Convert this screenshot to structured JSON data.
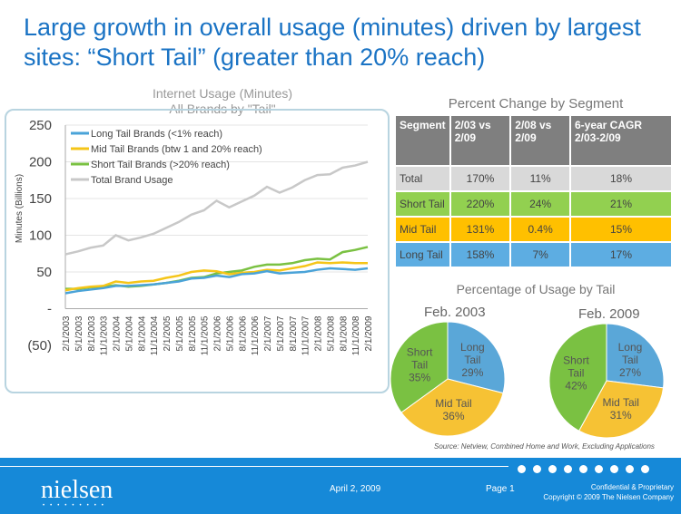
{
  "title": "Large growth in overall usage (minutes) driven by largest sites: “Short Tail” (greater than 20% reach)",
  "chart_data": [
    {
      "type": "line",
      "title": "Internet Usage (Minutes)",
      "subtitle": "All Brands by \"Tail\"",
      "ylabel": "Minutes (Billions)",
      "xlabel": "",
      "ylim": [
        -50,
        250
      ],
      "yticks": [
        250,
        200,
        150,
        100,
        50,
        0,
        -50
      ],
      "ytick_labels": [
        "250",
        "200",
        "150",
        "100",
        "50",
        "-",
        "(50)"
      ],
      "grid": true,
      "legend": "top-left",
      "x_tick_labels": [
        "2/1/2003",
        "5/1/2003",
        "8/1/2003",
        "11/1/2003",
        "2/1/2004",
        "5/1/2004",
        "8/1/2004",
        "11/1/2004",
        "2/1/2005",
        "5/1/2005",
        "8/1/2005",
        "11/1/2005",
        "2/1/2006",
        "5/1/2006",
        "8/1/2006",
        "11/1/2006",
        "2/1/2007",
        "5/1/2007",
        "8/1/2007",
        "11/1/2007",
        "2/1/2008",
        "5/1/2008",
        "8/1/2008",
        "11/1/2008",
        "2/1/2009"
      ],
      "series": [
        {
          "name": "Long Tail Brands (<1% reach)",
          "color": "#4aa3d8",
          "values": [
            21,
            24,
            26,
            28,
            31,
            31,
            32,
            33,
            35,
            37,
            41,
            42,
            45,
            43,
            47,
            48,
            51,
            48,
            49,
            50,
            53,
            55,
            54,
            53,
            55
          ]
        },
        {
          "name": "Mid Tail Brands (btw 1 and 20% reach)",
          "color": "#f5c518",
          "values": [
            25,
            28,
            30,
            31,
            37,
            35,
            37,
            38,
            42,
            45,
            50,
            52,
            51,
            47,
            49,
            50,
            53,
            52,
            55,
            58,
            63,
            62,
            63,
            62,
            62
          ]
        },
        {
          "name": "Short Tail Brands (>20% reach)",
          "color": "#7ac142",
          "values": [
            27,
            27,
            29,
            30,
            32,
            30,
            31,
            33,
            35,
            38,
            42,
            43,
            48,
            50,
            52,
            57,
            60,
            60,
            62,
            66,
            68,
            67,
            77,
            80,
            84
          ]
        },
        {
          "name": "Total Brand Usage",
          "color": "#c8c8c8",
          "values": [
            74,
            78,
            83,
            86,
            100,
            93,
            97,
            102,
            110,
            118,
            128,
            134,
            147,
            138,
            146,
            154,
            166,
            158,
            165,
            175,
            182,
            183,
            192,
            195,
            200
          ]
        }
      ]
    },
    {
      "type": "pie",
      "title": "Feb. 2003",
      "slices": [
        {
          "label": "Long Tail",
          "value": 29,
          "color": "#5aa7d8"
        },
        {
          "label": "Mid Tail",
          "value": 36,
          "color": "#f6c234"
        },
        {
          "label": "Short Tail",
          "value": 35,
          "color": "#7ac142"
        }
      ]
    },
    {
      "type": "pie",
      "title": "Feb. 2009",
      "slices": [
        {
          "label": "Long Tail",
          "value": 27,
          "color": "#5aa7d8"
        },
        {
          "label": "Mid Tail",
          "value": 31,
          "color": "#f6c234"
        },
        {
          "label": "Short Tail",
          "value": 42,
          "color": "#7ac142"
        }
      ]
    }
  ],
  "table": {
    "title": "Percent Change by Segment",
    "headers": [
      "Segment",
      "2/03 vs 2/09",
      "2/08 vs 2/09",
      "6-year CAGR 2/03-2/09"
    ],
    "rows": [
      {
        "cells": [
          "Total",
          "170%",
          "11%",
          "18%"
        ],
        "color": "#d9d9d9"
      },
      {
        "cells": [
          "Short Tail",
          "220%",
          "24%",
          "21%"
        ],
        "color": "#92d050"
      },
      {
        "cells": [
          "Mid Tail",
          "131%",
          "0.4%",
          "15%"
        ],
        "color": "#ffc000"
      },
      {
        "cells": [
          "Long Tail",
          "158%",
          "7%",
          "17%"
        ],
        "color": "#5dade2"
      }
    ]
  },
  "pie_section_title": "Percentage of Usage by Tail",
  "source": "Source: Netview, Combined Home and Work, Excluding Applications",
  "footer": {
    "logo": "nielsen",
    "logo_dots": "•••••••••",
    "date": "April 2, 2009",
    "page": "Page 1",
    "confidential": "Confidential & Proprietary",
    "copyright": "Copyright © 2009 The Nielsen Company"
  }
}
